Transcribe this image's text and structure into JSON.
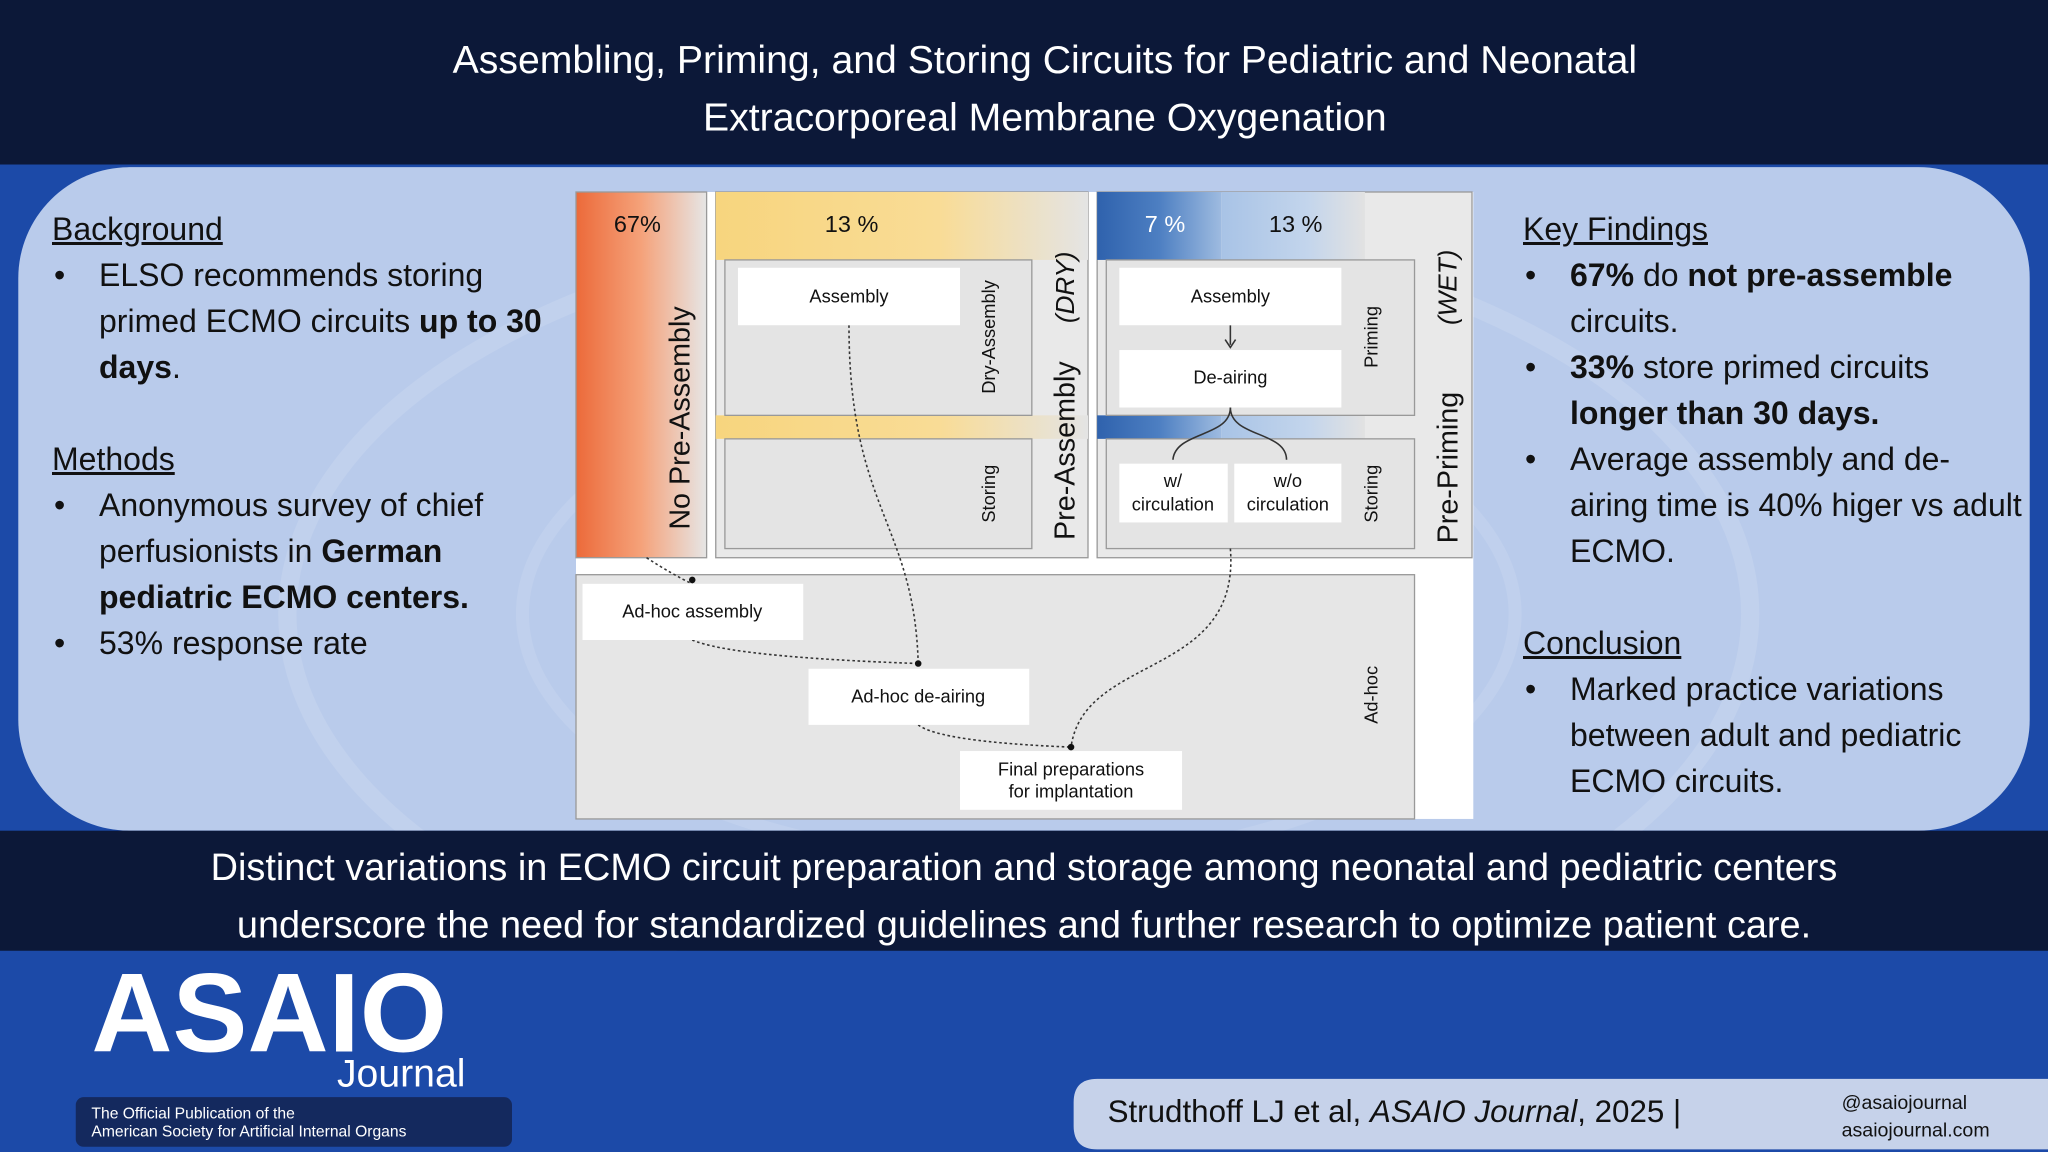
{
  "header": {
    "title_lines": [
      "Assembling, Priming, and Storing Circuits for Pediatric and Neonatal",
      "Extracorporeal Membrane Oxygenation"
    ]
  },
  "left": [
    {
      "heading": "Background",
      "bullets": [
        [
          {
            "text": "ELSO recommends storing primed ECMO circuits "
          },
          {
            "text": "up to 30 days",
            "bold": true
          },
          {
            "text": "."
          }
        ]
      ]
    },
    {
      "heading": "Methods",
      "bullets": [
        [
          {
            "text": "Anonymous survey of chief perfusionists in "
          },
          {
            "text": "German pediatric ECMO centers.",
            "bold": true
          }
        ],
        [
          {
            "text": "53% response rate"
          }
        ]
      ]
    }
  ],
  "right": [
    {
      "heading": "Key Findings",
      "bullets": [
        [
          {
            "text": "67%",
            "bold": true
          },
          {
            "text": " do "
          },
          {
            "text": "not pre-assemble",
            "bold": true
          },
          {
            "text": " circuits."
          }
        ],
        [
          {
            "text": "33%",
            "bold": true
          },
          {
            "text": " store primed circuits "
          },
          {
            "text": "longer than 30 days.",
            "bold": true
          }
        ],
        [
          {
            "text": "Average assembly and de-airing time is 40% higer vs adult ECMO."
          }
        ]
      ]
    },
    {
      "heading": "Conclusion",
      "bullets": [
        [
          {
            "text": "Marked practice variations between adult and pediatric ECMO circuits."
          }
        ]
      ]
    }
  ],
  "diagram": {
    "no_pre_assembly": {
      "percent": "67%",
      "label": "No Pre-Assembly"
    },
    "dry": {
      "percent": "13 %",
      "label": "Pre-Assembly",
      "tag": "(DRY)",
      "stages": [
        "Dry-Assembly",
        "Storing"
      ]
    },
    "wet": {
      "percents": [
        "7 %",
        "13 %"
      ],
      "label": "Pre-Priming",
      "tag": "(WET)",
      "stages": [
        "Priming",
        "Storing"
      ]
    },
    "ad_hoc": {
      "label": "Ad-hoc"
    },
    "nodes": [
      {
        "lines": [
          "Assembly"
        ]
      },
      {
        "lines": [
          "Assembly"
        ]
      },
      {
        "lines": [
          "De-airing"
        ]
      },
      {
        "lines": [
          "w/",
          "circulation"
        ]
      },
      {
        "lines": [
          "w/o",
          "circulation"
        ]
      },
      {
        "lines": [
          "Ad-hoc assembly"
        ]
      },
      {
        "lines": [
          "Ad-hoc de-airing"
        ]
      },
      {
        "lines": [
          "Final preparations",
          "for implantation"
        ]
      }
    ]
  },
  "statement_lines": [
    "Distinct variations in ECMO circuit preparation and storage among neonatal and pediatric centers",
    "underscore the need for standardized guidelines and further research to optimize patient care."
  ],
  "footer": {
    "logo": "ASAIO",
    "logo_sub": "Journal",
    "tagline_lines": [
      "The Official Publication of the",
      "American Society for Artificial Internal Organs"
    ],
    "citation": [
      {
        "text": "Strudthoff LJ et al, "
      },
      {
        "text": "ASAIO Journal",
        "italic": true
      },
      {
        "text": ", 2025 |"
      }
    ],
    "handle": "@asaiojournal",
    "website": "asaiojournal.com"
  }
}
